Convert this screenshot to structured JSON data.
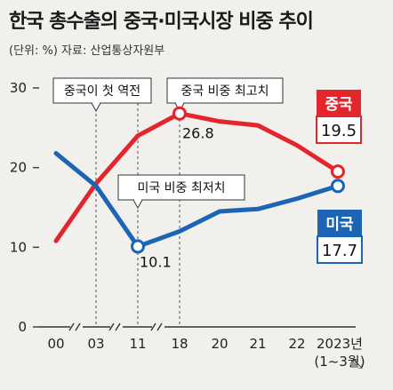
{
  "header": {
    "title": "한국 총수출의 중국·미국시장 비중 추이",
    "subtitle": "(단위: %)  자료: 산업통상자원부"
  },
  "colors": {
    "china": "#e3262c",
    "usa": "#1c65b4",
    "background": "#f1f0ec"
  },
  "chart_data": {
    "type": "line",
    "categories": [
      "00",
      "03",
      "11",
      "18",
      "20",
      "21",
      "22",
      "2023년\n(1~3월)"
    ],
    "x_tick_labels": [
      "00",
      "03",
      "11",
      "18",
      "20",
      "21",
      "22",
      "2023년",
      "(1~3월)"
    ],
    "y_ticks": [
      "0",
      "10",
      "20",
      "30"
    ],
    "ylim": [
      0,
      30
    ],
    "grid": false,
    "axis_breaks": [
      "00-03",
      "03-11",
      "11-18"
    ],
    "series": [
      {
        "name": "중국",
        "values": [
          10.8,
          18.0,
          24.0,
          26.8,
          25.8,
          25.3,
          22.8,
          19.5
        ],
        "end_label": "19.5"
      },
      {
        "name": "미국",
        "values": [
          21.8,
          17.7,
          10.1,
          12.0,
          14.5,
          14.8,
          16.1,
          17.7
        ],
        "end_label": "17.7"
      }
    ],
    "annotations": [
      {
        "text": "중국이 첫 역전",
        "at": "03"
      },
      {
        "text": "중국 비중 최고치",
        "at": "18",
        "value_label": "26.8"
      },
      {
        "text": "미국 비중 최저치",
        "at": "11",
        "value_label": "10.1"
      }
    ]
  }
}
